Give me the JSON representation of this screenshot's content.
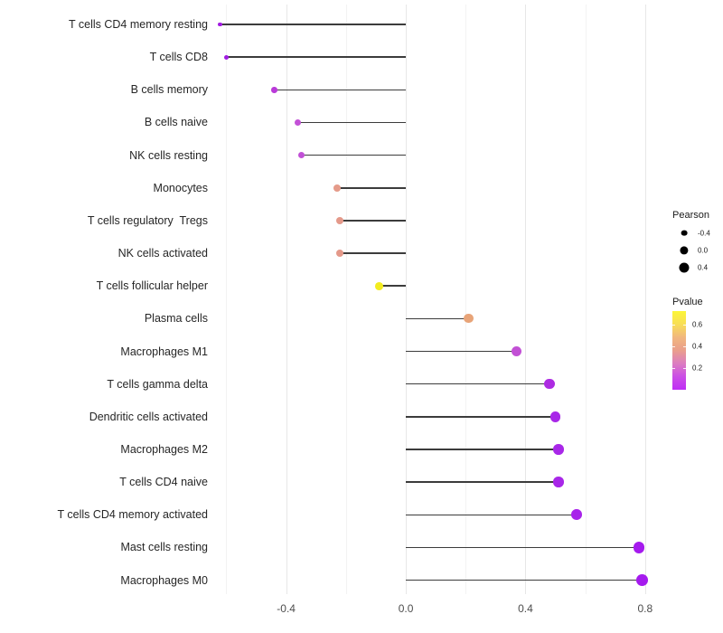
{
  "chart_data": {
    "type": "scatter",
    "subtype": "lollipop",
    "orientation": "horizontal",
    "title": "",
    "xlabel": "",
    "ylabel": "",
    "categories": [
      "T cells CD4 memory resting",
      "T cells CD8",
      "B cells memory",
      "B cells naive",
      "NK cells resting",
      "Monocytes",
      "T cells regulatory  Tregs",
      "NK cells activated",
      "T cells follicular helper",
      "Plasma cells",
      "Macrophages M1",
      "T cells gamma delta",
      "Dendritic cells activated",
      "Macrophages M2",
      "T cells CD4 naive",
      "T cells CD4 memory activated",
      "Mast cells resting",
      "Macrophages M0"
    ],
    "series": [
      {
        "name": "Pearson",
        "values": [
          -0.62,
          -0.6,
          -0.44,
          -0.36,
          -0.35,
          -0.23,
          -0.22,
          -0.22,
          -0.09,
          0.21,
          0.37,
          0.48,
          0.5,
          0.51,
          0.51,
          0.57,
          0.78,
          0.79
        ]
      },
      {
        "name": "Pvalue (approx, encoded by color)",
        "values": [
          0.01,
          0.01,
          0.06,
          0.13,
          0.13,
          0.45,
          0.44,
          0.44,
          0.66,
          0.4,
          0.13,
          0.04,
          0.03,
          0.03,
          0.03,
          0.02,
          0.01,
          0.01
        ]
      }
    ],
    "point_colors": [
      "#A21BE1",
      "#A01CE2",
      "#BA3AD9",
      "#C351D7",
      "#C150D6",
      "#E59B8A",
      "#E4998A",
      "#E4998A",
      "#F3EC20",
      "#E8A478",
      "#C250D5",
      "#AD2BE2",
      "#A827E8",
      "#A827E8",
      "#A827E8",
      "#A823EA",
      "#A51AEE",
      "#A51AEE"
    ],
    "xlim": [
      -0.686,
      0.861
    ],
    "x_major_ticks": [
      -0.4,
      0.0,
      0.4,
      0.8
    ],
    "x_tick_labels": [
      "-0.4",
      "0.0",
      "0.4",
      "0.8"
    ],
    "x_minor_ticks": [
      -0.6,
      -0.2,
      0.2,
      0.6
    ],
    "grid": "vertical major and minor, no horizontal",
    "baseline_x": 0.0,
    "stem_color": "#3c3c3c",
    "legend_position": "right",
    "legend": {
      "size": {
        "title": "Pearson",
        "entries": [
          {
            "label": "-0.4",
            "value": -0.4
          },
          {
            "label": "0.0",
            "value": 0.0
          },
          {
            "label": "0.4",
            "value": 0.4
          }
        ],
        "swatch_color": "#000000"
      },
      "color": {
        "title": "Pvalue",
        "tick_labels": [
          "0.6",
          "0.4",
          "0.2"
        ],
        "tick_values": [
          0.6,
          0.4,
          0.2
        ],
        "bar_value_top": 0.72,
        "bar_value_bottom": 0.0,
        "gradient_stops": [
          "#FCF637",
          "#F8DE56",
          "#F1B77E",
          "#EA9E8C",
          "#DC7DC1",
          "#CB4EE6",
          "#BF2DF5"
        ]
      }
    }
  }
}
